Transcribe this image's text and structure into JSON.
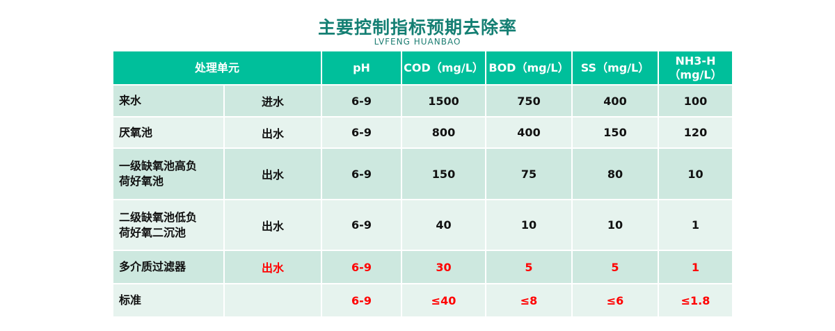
{
  "title": "主要控制指标预期去除率",
  "subtitle": "LVFENG  HUANBAO",
  "headers": [
    "处理单元",
    "pH",
    "COD（mg/L）",
    "BOD（mg/L）",
    "SS（mg/L）",
    "NH3-H\n（mg/L）"
  ],
  "rows": [
    {
      "unit": "来水",
      "stage": "进水",
      "ph": "6-9",
      "cod": "1500",
      "bod": "750",
      "ss": "400",
      "nh3": "100",
      "highlight": false
    },
    {
      "unit": "厌氧池",
      "stage": "出水",
      "ph": "6-9",
      "cod": "800",
      "bod": "400",
      "ss": "150",
      "nh3": "120",
      "highlight": false
    },
    {
      "unit": "一级缺氧池高负荷好氧池",
      "stage": "出水",
      "ph": "6-9",
      "cod": "150",
      "bod": "75",
      "ss": "80",
      "nh3": "10",
      "highlight": false
    },
    {
      "unit": "二级缺氧池低负荷好氧二沉池",
      "stage": "出水",
      "ph": "6-9",
      "cod": "40",
      "bod": "10",
      "ss": "10",
      "nh3": "1",
      "highlight": false
    },
    {
      "unit": "多介质过滤器",
      "stage": "出水",
      "ph": "6-9",
      "cod": "30",
      "bod": "5",
      "ss": "5",
      "nh3": "1",
      "highlight": true
    },
    {
      "unit": "标准",
      "stage": "",
      "ph": "6-9",
      "cod": "≤40",
      "bod": "≤8",
      "ss": "≤6",
      "nh3": "≤1.8",
      "highlight": true
    }
  ],
  "colors": {
    "header": "#00bf9b",
    "title": "#147f73",
    "highlight": "#ff0000"
  }
}
